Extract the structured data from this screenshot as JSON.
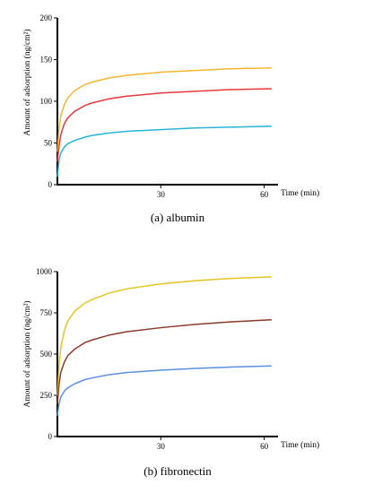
{
  "chart_data": [
    {
      "type": "line",
      "caption": "(a) albumin",
      "xlabel": "Time (min)",
      "ylabel": "Amount of adsorption (ng/cm²)",
      "xlim": [
        0,
        64
      ],
      "ylim": [
        0,
        200
      ],
      "xticks": [
        30,
        60
      ],
      "yticks": [
        0,
        50,
        100,
        150,
        200
      ],
      "series": [
        {
          "color": "#f5b731",
          "x": [
            0,
            0.5,
            1,
            2,
            3,
            5,
            8,
            10,
            15,
            20,
            30,
            40,
            50,
            62
          ],
          "y": [
            40,
            68,
            83,
            96,
            104,
            113,
            120,
            123,
            128,
            131,
            135,
            137,
            139,
            140
          ]
        },
        {
          "color": "#e8383d",
          "x": [
            0,
            0.5,
            1,
            2,
            3,
            5,
            8,
            10,
            15,
            20,
            30,
            40,
            50,
            62
          ],
          "y": [
            28,
            47,
            60,
            73,
            80,
            88,
            95,
            98,
            103,
            106,
            110,
            112,
            114,
            115
          ]
        },
        {
          "color": "#28b4d6",
          "x": [
            0,
            0.5,
            1,
            2,
            3,
            5,
            8,
            10,
            15,
            20,
            30,
            40,
            50,
            62
          ],
          "y": [
            10,
            30,
            38,
            45,
            49,
            53,
            57,
            59,
            62,
            64,
            66,
            68,
            69,
            70
          ]
        }
      ]
    },
    {
      "type": "line",
      "caption": "(b) fibronectin",
      "xlabel": "Time (min)",
      "ylabel": "Amount of adsorption (ng/cm²)",
      "xlim": [
        0,
        64
      ],
      "ylim": [
        0,
        1000
      ],
      "xticks": [
        30,
        60
      ],
      "yticks": [
        0,
        250,
        500,
        750,
        1000
      ],
      "series": [
        {
          "color": "#e6c421",
          "x": [
            0,
            0.5,
            1,
            2,
            3,
            5,
            8,
            10,
            15,
            20,
            30,
            40,
            50,
            62
          ],
          "y": [
            250,
            440,
            540,
            640,
            700,
            760,
            810,
            830,
            870,
            895,
            925,
            945,
            958,
            968
          ]
        },
        {
          "color": "#8b3a2b",
          "x": [
            0,
            0.5,
            1,
            2,
            3,
            5,
            8,
            10,
            15,
            20,
            30,
            40,
            50,
            62
          ],
          "y": [
            200,
            320,
            390,
            450,
            490,
            530,
            570,
            585,
            615,
            635,
            660,
            680,
            695,
            708
          ]
        },
        {
          "color": "#5b8fe0",
          "x": [
            0,
            0.5,
            1,
            2,
            3,
            5,
            8,
            10,
            15,
            20,
            30,
            40,
            50,
            62
          ],
          "y": [
            130,
            200,
            240,
            275,
            295,
            320,
            345,
            355,
            375,
            388,
            402,
            413,
            421,
            428
          ]
        }
      ]
    }
  ]
}
